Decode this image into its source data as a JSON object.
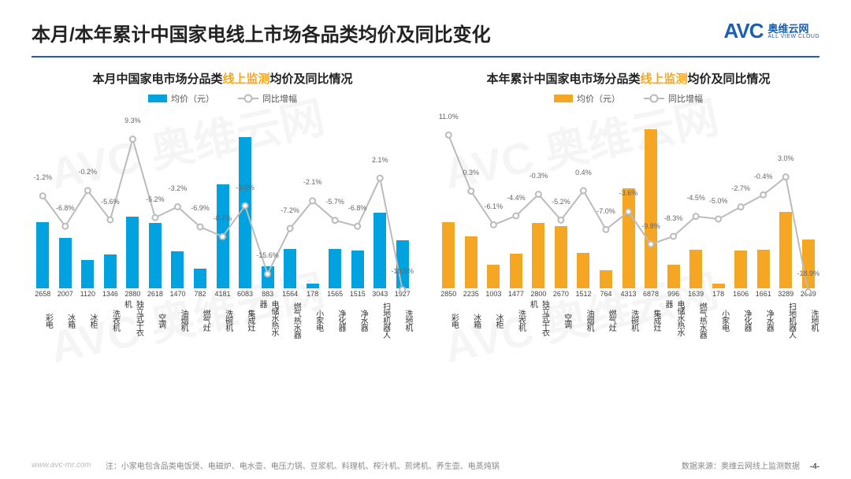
{
  "header": {
    "title": "本月/本年累计中国家电线上市场各品类均价及同比变化",
    "logo_mark": "AVC",
    "logo_cn": "奥维云网",
    "logo_en": "ALL VIEW CLOUD"
  },
  "colors": {
    "brand": "#1a5fb4",
    "left_bar": "#00a3e0",
    "right_bar": "#f5a623",
    "line": "#bbbbbb",
    "text": "#333333",
    "footer": "#888888"
  },
  "categories": [
    "彩电",
    "冰箱",
    "冰柜",
    "洗衣机",
    "独立式干衣机",
    "空调",
    "油烟机",
    "燃气灶",
    "洗碗机",
    "集成灶",
    "电储水热水器",
    "燃气热水器",
    "小家电",
    "净化器",
    "净水器",
    "扫地机器人",
    "洗地机"
  ],
  "left_chart": {
    "title_prefix": "本月中国家电市场分品类",
    "title_hl": "线上监测",
    "title_suffix": "均价及同比情况",
    "hl_color": "#f5a623",
    "bar_color": "#00a3e0",
    "legend_price": "均价（元）",
    "legend_line": "同比增幅",
    "bar_values": [
      2658,
      2007,
      1120,
      1346,
      2880,
      2618,
      1470,
      782,
      4181,
      6083,
      883,
      1564,
      178,
      1565,
      1515,
      3043,
      1927
    ],
    "bar_max": 7000,
    "line_values": [
      -1.2,
      -6.8,
      -0.2,
      -5.6,
      9.3,
      -5.2,
      -3.2,
      -6.9,
      -8.7,
      -3.0,
      -15.6,
      -7.2,
      -2.1,
      -5.7,
      -6.8,
      2.1,
      -18.5
    ],
    "line_min": -20,
    "line_max": 12
  },
  "right_chart": {
    "title_prefix": "本年累计中国家电市场分品类",
    "title_hl": "线上监测",
    "title_suffix": "均价及同比情况",
    "hl_color": "#f5a623",
    "bar_color": "#f5a623",
    "legend_price": "均价（元）",
    "legend_line": "同比增幅",
    "bar_values": [
      2850,
      2235,
      1003,
      1477,
      2800,
      2670,
      1512,
      764,
      4313,
      6878,
      996,
      1639,
      178,
      1606,
      1661,
      3289,
      2089
    ],
    "bar_max": 7500,
    "line_values": [
      11.0,
      0.3,
      -6.1,
      -4.4,
      -0.3,
      -5.2,
      0.4,
      -7.0,
      -3.6,
      -9.8,
      -8.3,
      -4.5,
      -5.0,
      -2.7,
      -0.4,
      3.0,
      -18.9
    ],
    "line_min": -20,
    "line_max": 13
  },
  "footer": {
    "url": "www.avc-mr.com",
    "note": "注：小家电包含品类电饭煲、电磁炉、电水壶、电压力锅、豆浆机、料理机、榨汁机、煎烤机、养生壶、电蒸炖锅",
    "source": "数据来源：奥维云网线上监测数据",
    "page": "-4-"
  },
  "watermark_text": "AVC 奥维云网"
}
